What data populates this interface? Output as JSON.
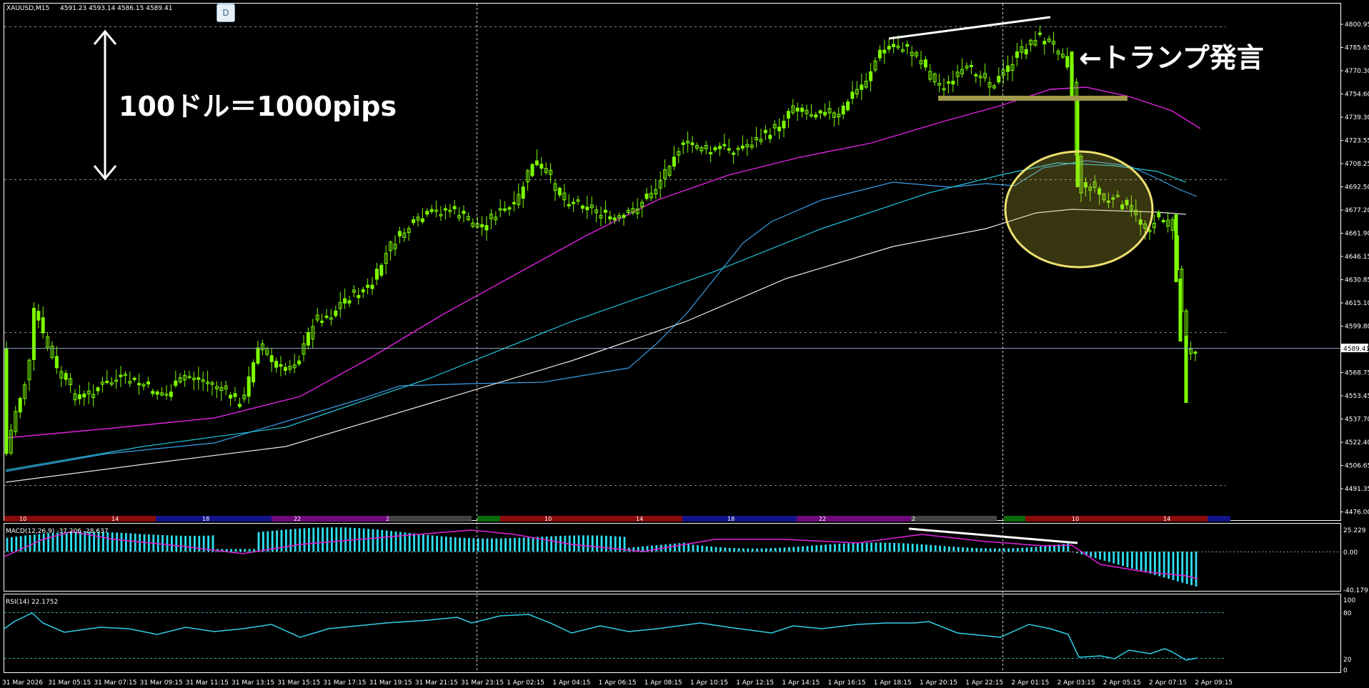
{
  "window": {
    "symbol_header": "XAUUSD,M15",
    "ohlc": "4591.23 4593.14 4586.15 4589.41",
    "d_button": "D"
  },
  "annotations": {
    "range_label": "100ドル＝1000pips",
    "event_label": "←トランプ発言"
  },
  "colors": {
    "background": "#000000",
    "bull_candle": "#7CFC00",
    "ma_magenta": "#e020e0",
    "ma_blue": "#3a9ee8",
    "ma_cyan": "#22c4d8",
    "ma_white": "#e8e8e8",
    "macd_hist": "#2fe0f0",
    "rsi_line": "#2fd0e8",
    "highlight_ellipse": "#e8d860",
    "support_bar": "#a09a4a"
  },
  "price_axis": {
    "labels": [
      "4800.95",
      "4785.65",
      "4770.30",
      "4754.60",
      "4739.30",
      "4723.55",
      "4708.25",
      "4692.50",
      "4677.20",
      "4661.90",
      "4646.15",
      "4630.85",
      "4615.10",
      "4599.80",
      "4584.50",
      "4568.75",
      "4553.45",
      "4537.70",
      "4522.40",
      "4506.65",
      "4491.35",
      "4476.00"
    ],
    "current_price": "4589.41"
  },
  "sessions": {
    "labels": [
      "10",
      "14",
      "18",
      "22",
      "2",
      "10",
      "14",
      "18",
      "22",
      "2",
      "10",
      "14"
    ]
  },
  "macd": {
    "title": "MACD(12,26,9) -37.206 -28.637",
    "labels": [
      "25.229",
      "0.00",
      "-40.179"
    ]
  },
  "rsi": {
    "title": "RSI(14) 22.1752",
    "labels": [
      "100",
      "80",
      "20",
      "0"
    ]
  },
  "time_axis": {
    "labels": [
      "31 Mar 2026",
      "31 Mar 05:15",
      "31 Mar 07:15",
      "31 Mar 09:15",
      "31 Mar 11:15",
      "31 Mar 13:15",
      "31 Mar 15:15",
      "31 Mar 17:15",
      "31 Mar 19:15",
      "31 Mar 21:15",
      "31 Mar 23:15",
      "1 Apr 02:15",
      "1 Apr 04:15",
      "1 Apr 06:15",
      "1 Apr 08:15",
      "1 Apr 10:15",
      "1 Apr 12:15",
      "1 Apr 14:15",
      "1 Apr 16:15",
      "1 Apr 18:15",
      "1 Apr 20:15",
      "1 Apr 22:15",
      "2 Apr 01:15",
      "2 Apr 03:15",
      "2 Apr 05:15",
      "2 Apr 07:15",
      "2 Apr 09:15"
    ]
  }
}
